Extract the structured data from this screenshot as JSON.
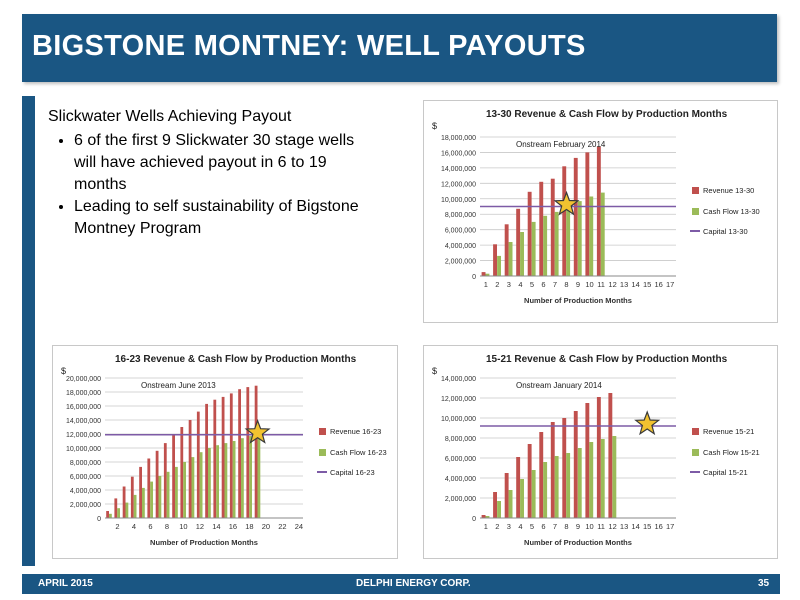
{
  "slide": {
    "title": "BIGSTONE MONTNEY:  WELL PAYOUTS",
    "footer_left": "APRIL 2015",
    "footer_center": "DELPHI ENERGY CORP.",
    "footer_right": "35"
  },
  "body": {
    "heading": "Slickwater Wells Achieving Payout",
    "bullets": [
      "6 of the first 9 Slickwater 30 stage wells will have achieved payout in 6 to 19 months",
      "Leading to self sustainability of Bigstone Montney Program"
    ]
  },
  "colors": {
    "brand": "#1a5683",
    "revenue": "#c0504d",
    "cash_flow": "#9bbb59",
    "capital": "#7d5ba6",
    "star": "#f2c230"
  },
  "chart_data": [
    {
      "type": "bar",
      "title": "13-30 Revenue & Cash Flow by Production Months",
      "ylabel": "$",
      "xlabel": "Number of Production Months",
      "annotation": "Onstream February 2014",
      "categories": [
        "1",
        "2",
        "3",
        "4",
        "5",
        "6",
        "7",
        "8",
        "9",
        "10",
        "11",
        "12",
        "13",
        "14",
        "15",
        "16",
        "17"
      ],
      "series": [
        {
          "name": "Revenue 13-30",
          "values": [
            500000,
            4100000,
            6700000,
            8700000,
            10900000,
            12200000,
            12600000,
            14200000,
            15300000,
            16000000,
            16800000,
            0,
            0,
            0,
            0,
            0,
            0
          ]
        },
        {
          "name": "Cash Flow 13-30",
          "values": [
            300000,
            2600000,
            4400000,
            5700000,
            7000000,
            7800000,
            8300000,
            9100000,
            9700000,
            10300000,
            10800000,
            0,
            0,
            0,
            0,
            0,
            0
          ]
        }
      ],
      "capital": {
        "name": "Capital 13-30",
        "value": 9000000
      },
      "ylim": [
        0,
        18000000
      ],
      "yticks": [
        0,
        2000000,
        4000000,
        6000000,
        8000000,
        10000000,
        12000000,
        14000000,
        16000000,
        18000000
      ],
      "ytick_labels": [
        "0",
        "2,000,000",
        "4,000,000",
        "6,000,000",
        "8,000,000",
        "10,000,000",
        "12,000,000",
        "14,000,000",
        "16,000,000",
        "18,000,000"
      ],
      "xtick_labels": [
        "1",
        "2",
        "3",
        "4",
        "5",
        "6",
        "7",
        "8",
        "9",
        "10",
        "11",
        "12",
        "13",
        "14",
        "15",
        "16",
        "17"
      ],
      "payout_month": 8,
      "grid": true,
      "legend": "right"
    },
    {
      "type": "bar",
      "title": "16-23 Revenue & Cash Flow by Production Months",
      "ylabel": "$",
      "xlabel": "Number of Production Months",
      "annotation": "Onstream June 2013",
      "categories": [
        "1",
        "2",
        "3",
        "4",
        "5",
        "6",
        "7",
        "8",
        "9",
        "10",
        "11",
        "12",
        "13",
        "14",
        "15",
        "16",
        "17",
        "18",
        "19",
        "20",
        "21",
        "22",
        "23",
        "24"
      ],
      "series": [
        {
          "name": "Revenue 16-23",
          "values": [
            1000000,
            2800000,
            4500000,
            5900000,
            7300000,
            8500000,
            9600000,
            10700000,
            11800000,
            13000000,
            14000000,
            15200000,
            16300000,
            16900000,
            17300000,
            17800000,
            18400000,
            18700000,
            18900000,
            0,
            0,
            0,
            0,
            0
          ]
        },
        {
          "name": "Cash Flow 16-23",
          "values": [
            600000,
            1400000,
            2200000,
            3300000,
            4300000,
            5200000,
            6000000,
            6600000,
            7300000,
            8000000,
            8700000,
            9400000,
            10000000,
            10400000,
            10700000,
            11000000,
            11400000,
            11700000,
            11900000,
            0,
            0,
            0,
            0,
            0
          ]
        }
      ],
      "capital": {
        "name": "Capital 16-23",
        "value": 11900000
      },
      "ylim": [
        0,
        20000000
      ],
      "yticks": [
        0,
        2000000,
        4000000,
        6000000,
        8000000,
        10000000,
        12000000,
        14000000,
        16000000,
        18000000,
        20000000
      ],
      "ytick_labels": [
        "0",
        "2,000,000",
        "4,000,000",
        "6,000,000",
        "8,000,000",
        "10,000,000",
        "12,000,000",
        "14,000,000",
        "16,000,000",
        "18,000,000",
        "20,000,000"
      ],
      "xtick_labels": [
        "",
        "2",
        "",
        "4",
        "",
        "6",
        "",
        "8",
        "",
        "10",
        "",
        "12",
        "",
        "14",
        "",
        "16",
        "",
        "18",
        "",
        "20",
        "",
        "22",
        "",
        "24"
      ],
      "payout_month": 19,
      "grid": true,
      "legend": "right"
    },
    {
      "type": "bar",
      "title": "15-21 Revenue & Cash Flow by Production Months",
      "ylabel": "$",
      "xlabel": "Number of Production Months",
      "annotation": "Onstream January 2014",
      "categories": [
        "1",
        "2",
        "3",
        "4",
        "5",
        "6",
        "7",
        "8",
        "9",
        "10",
        "11",
        "12",
        "13",
        "14",
        "15",
        "16",
        "17"
      ],
      "series": [
        {
          "name": "Revenue 15-21",
          "values": [
            300000,
            2600000,
            4500000,
            6100000,
            7400000,
            8600000,
            9600000,
            10000000,
            10700000,
            11500000,
            12100000,
            12500000,
            0,
            0,
            0,
            0,
            0
          ]
        },
        {
          "name": "Cash Flow 15-21",
          "values": [
            200000,
            1700000,
            2800000,
            3900000,
            4800000,
            5600000,
            6200000,
            6500000,
            7000000,
            7600000,
            7900000,
            8200000,
            0,
            0,
            0,
            0,
            0
          ]
        }
      ],
      "capital": {
        "name": "Capital 15-21",
        "value": 9200000
      },
      "ylim": [
        0,
        14000000
      ],
      "yticks": [
        0,
        2000000,
        4000000,
        6000000,
        8000000,
        10000000,
        12000000,
        14000000
      ],
      "ytick_labels": [
        "0",
        "2,000,000",
        "4,000,000",
        "6,000,000",
        "8,000,000",
        "10,000,000",
        "12,000,000",
        "14,000,000"
      ],
      "xtick_labels": [
        "1",
        "2",
        "3",
        "4",
        "5",
        "6",
        "7",
        "8",
        "9",
        "10",
        "11",
        "12",
        "13",
        "14",
        "15",
        "16",
        "17"
      ],
      "payout_month": 15,
      "grid": true,
      "legend": "right"
    }
  ]
}
